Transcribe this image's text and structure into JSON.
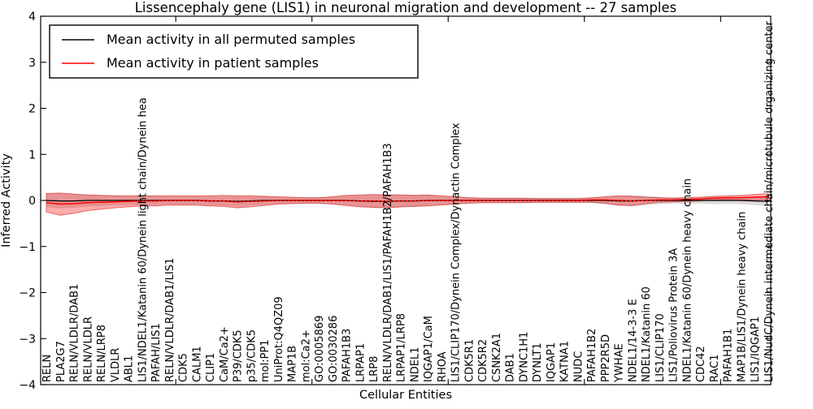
{
  "window": {
    "title": "Lissencephaly gene (LIS1) in neuronal migration and development -- 27 samples"
  },
  "legend": {
    "items": [
      {
        "label": "Mean activity in all permuted samples",
        "color": "#000000"
      },
      {
        "label": "Mean activity in patient samples",
        "color": "#ff0000"
      }
    ]
  },
  "chart_data": {
    "type": "line",
    "title": "Lissencephaly gene (LIS1) in neuronal migration and development -- 27 samples",
    "xlabel": "Cellular Entities",
    "ylabel": "Inferred Activity",
    "ylim": [
      -4,
      4
    ],
    "yticks": [
      4,
      3,
      2,
      1,
      0,
      -1,
      -2,
      -3,
      -4
    ],
    "grid": false,
    "legend_position": "upper left",
    "colors": {
      "permuted_line": "#000000",
      "patient_line": "#ff0000",
      "permuted_band": "#999999",
      "patient_band": "#ff0000"
    },
    "categories": [
      "RELN",
      "PLA2G7",
      "RELN/VLDLR/DAB1",
      "RELN/VLDLR",
      "RELN/LRP8",
      "VLDLR",
      "ABL1",
      "LIS1/NDEL1/Katanin 60/Dynein light chain/Dynein hea",
      "PAFAH/LIS1",
      "RELN/VLDLR/DAB1/LIS1",
      "CDK5",
      "CALM1",
      "CLIP1",
      "CaM/Ca2+",
      "P39/CDK5",
      "p35/CDK5",
      "mol:PP1",
      "UniProt:Q4QZ09",
      "MAP1B",
      "mol:Ca2+",
      "GO:0005869",
      "GO:0030286",
      "PAFAH1B3",
      "LRPAP1",
      "LRP8",
      "RELN/VLDLR/DAB1/LIS1/PAFAH1B2/PAFAH1B3",
      "LRPAP1/LRP8",
      "NDEL1",
      "IQGAP1/CaM",
      "RHOA",
      "LIS1/CLIP170/Dynein Complex/Dynactin Complex",
      "CDK5R1",
      "CDK5R2",
      "CSNK2A1",
      "DAB1",
      "DYNC1H1",
      "DYNLT1",
      "IQGAP1",
      "KATNA1",
      "NUDC",
      "PAFAH1B2",
      "PPP2R5D",
      "YWHAE",
      "NDEL1/14-3-3 E",
      "NDEL1/Katanin 60",
      "LIS1/CLIP170",
      "LIS1/Poliovirus Protein 3A",
      "NDEL1/Katanin 60/Dynein heavy chain",
      "CDC42",
      "RAC1",
      "PAFAH1B1",
      "MAP1B/LIS1/Dynein heavy chain",
      "LIS1/IQGAP1",
      "LIS1/NudC/Dynein intermediate chain/microtubule organizing center"
    ],
    "series": [
      {
        "name": "Mean activity in all permuted samples",
        "color": "#000000",
        "values": [
          0.0,
          -0.01,
          -0.01,
          0.0,
          0.0,
          0.0,
          0.0,
          0.0,
          0.0,
          0.0,
          0.0,
          0.0,
          -0.01,
          -0.01,
          -0.02,
          -0.01,
          0.0,
          0.0,
          0.0,
          0.0,
          0.0,
          0.0,
          0.0,
          -0.01,
          -0.02,
          -0.02,
          -0.01,
          -0.01,
          0.0,
          0.0,
          0.0,
          0.0,
          0.0,
          0.0,
          0.0,
          0.0,
          0.0,
          0.0,
          0.0,
          0.0,
          0.0,
          0.0,
          -0.01,
          -0.01,
          0.0,
          0.0,
          0.0,
          0.0,
          0.0,
          0.0,
          0.0,
          0.0,
          -0.01,
          -0.02
        ],
        "band_halfwidth": [
          0.15,
          0.16,
          0.15,
          0.13,
          0.12,
          0.11,
          0.1,
          0.1,
          0.1,
          0.09,
          0.09,
          0.09,
          0.1,
          0.1,
          0.11,
          0.1,
          0.09,
          0.08,
          0.07,
          0.07,
          0.07,
          0.08,
          0.1,
          0.12,
          0.14,
          0.15,
          0.14,
          0.13,
          0.12,
          0.1,
          0.08,
          0.07,
          0.06,
          0.06,
          0.06,
          0.06,
          0.06,
          0.06,
          0.06,
          0.06,
          0.06,
          0.08,
          0.11,
          0.12,
          0.1,
          0.08,
          0.07,
          0.07,
          0.07,
          0.08,
          0.08,
          0.08,
          0.09,
          0.1
        ]
      },
      {
        "name": "Mean activity in patient samples",
        "color": "#ff0000",
        "values": [
          -0.05,
          -0.08,
          -0.07,
          -0.05,
          -0.04,
          -0.03,
          -0.02,
          -0.01,
          -0.01,
          0.0,
          0.0,
          0.0,
          -0.01,
          -0.01,
          -0.03,
          -0.02,
          -0.01,
          0.0,
          0.0,
          0.0,
          0.0,
          0.0,
          0.0,
          -0.01,
          -0.01,
          -0.02,
          -0.01,
          -0.01,
          0.0,
          0.0,
          0.0,
          0.0,
          0.0,
          0.0,
          0.0,
          0.0,
          0.0,
          0.0,
          0.0,
          0.0,
          0.01,
          0.01,
          0.0,
          -0.01,
          0.0,
          0.01,
          0.01,
          0.02,
          0.03,
          0.05,
          0.06,
          0.06,
          0.07,
          0.08
        ],
        "band_halfwidth": [
          0.2,
          0.24,
          0.21,
          0.17,
          0.15,
          0.13,
          0.12,
          0.11,
          0.11,
          0.1,
          0.1,
          0.1,
          0.11,
          0.12,
          0.13,
          0.12,
          0.1,
          0.08,
          0.07,
          0.06,
          0.06,
          0.08,
          0.11,
          0.13,
          0.14,
          0.14,
          0.13,
          0.12,
          0.12,
          0.1,
          0.08,
          0.06,
          0.05,
          0.05,
          0.05,
          0.05,
          0.04,
          0.04,
          0.04,
          0.04,
          0.05,
          0.07,
          0.1,
          0.1,
          0.07,
          0.05,
          0.04,
          0.04,
          0.04,
          0.04,
          0.04,
          0.05,
          0.06,
          0.07
        ]
      }
    ]
  }
}
